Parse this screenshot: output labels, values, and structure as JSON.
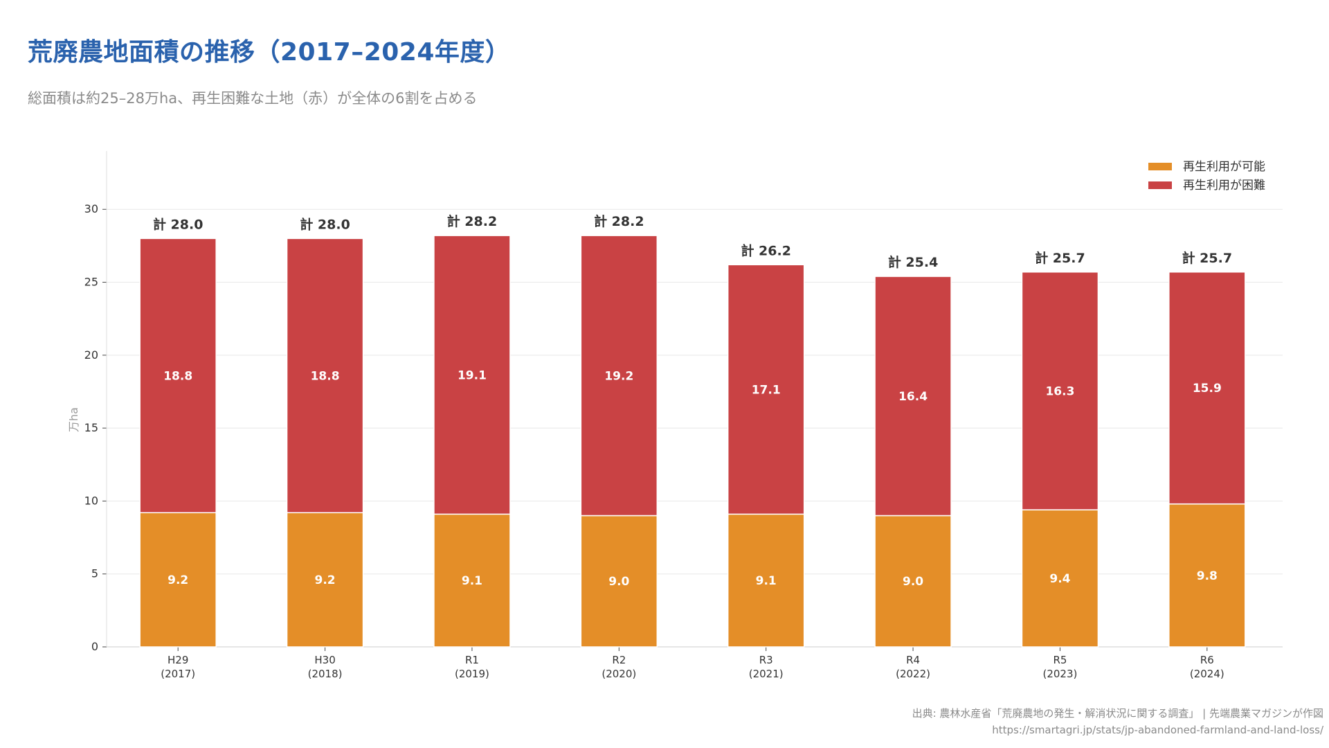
{
  "header": {
    "title": "荒廃農地面積の推移（2017–2024年度）",
    "subtitle": "総面積は約25–28万ha、再生困難な土地（赤）が全体の6割を占める"
  },
  "footer": {
    "source": "出典: 農林水産省「荒廃農地の発生・解消状況に関する調査」 | 先端農業マガジンが作図",
    "url": "https://smartagri.jp/stats/jp-abandoned-farmland-and-land-loss/"
  },
  "colors": {
    "reclaimable": "#e48e28",
    "difficult": "#c94244",
    "grid": "#e8e8e8",
    "axis": "#dddddd"
  },
  "chart_data": {
    "type": "bar",
    "stacked": true,
    "title": "荒廃農地面積の推移（2017–2024年度）",
    "xlabel": "",
    "ylabel": "万ha",
    "ylim": [
      0,
      34
    ],
    "yticks": [
      0,
      5,
      10,
      15,
      20,
      25,
      30
    ],
    "grid": true,
    "legend_position": "top-right",
    "categories": [
      "H29\n(2017)",
      "H30\n(2018)",
      "R1\n(2019)",
      "R2\n(2020)",
      "R3\n(2021)",
      "R4\n(2022)",
      "R5\n(2023)",
      "R6\n(2024)"
    ],
    "series": [
      {
        "name": "再生利用が可能",
        "color": "#e48e28",
        "values": [
          9.2,
          9.2,
          9.1,
          9.0,
          9.1,
          9.0,
          9.4,
          9.8
        ]
      },
      {
        "name": "再生利用が困難",
        "color": "#c94244",
        "values": [
          18.8,
          18.8,
          19.1,
          19.2,
          17.1,
          16.4,
          16.3,
          15.9
        ]
      }
    ],
    "totals": [
      28.0,
      28.0,
      28.2,
      28.2,
      26.2,
      25.4,
      25.7,
      25.7
    ],
    "total_label_prefix": "計"
  }
}
